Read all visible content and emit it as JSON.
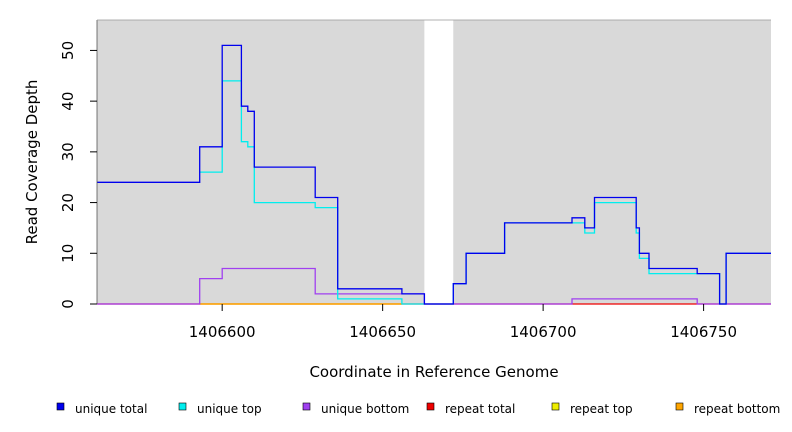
{
  "chart_data": {
    "type": "line",
    "title": "",
    "xlabel": "Coordinate in Reference Genome",
    "ylabel": "Read Coverage Depth",
    "xlim": [
      1406561,
      1406771
    ],
    "ylim": [
      0,
      56
    ],
    "x_ticks": [
      1406600,
      1406650,
      1406700,
      1406750
    ],
    "y_ticks": [
      0,
      10,
      20,
      30,
      40,
      50
    ],
    "background": "#d9d9d9",
    "gap": [
      1406663,
      1406672
    ],
    "legend_position": "bottom",
    "series": [
      {
        "name": "unique total",
        "color": "#0000ee",
        "points": [
          [
            1406561,
            24
          ],
          [
            1406593,
            24
          ],
          [
            1406593,
            31
          ],
          [
            1406600,
            31
          ],
          [
            1406600,
            51
          ],
          [
            1406606,
            51
          ],
          [
            1406606,
            39
          ],
          [
            1406608,
            39
          ],
          [
            1406608,
            38
          ],
          [
            1406610,
            38
          ],
          [
            1406610,
            27
          ],
          [
            1406629,
            27
          ],
          [
            1406629,
            21
          ],
          [
            1406636,
            21
          ],
          [
            1406636,
            3
          ],
          [
            1406656,
            3
          ],
          [
            1406656,
            2
          ],
          [
            1406663,
            2
          ],
          [
            1406663,
            0
          ],
          [
            1406672,
            0
          ],
          [
            1406672,
            4
          ],
          [
            1406676,
            4
          ],
          [
            1406676,
            10
          ],
          [
            1406688,
            10
          ],
          [
            1406688,
            16
          ],
          [
            1406709,
            16
          ],
          [
            1406709,
            17
          ],
          [
            1406713,
            17
          ],
          [
            1406713,
            15
          ],
          [
            1406716,
            15
          ],
          [
            1406716,
            21
          ],
          [
            1406729,
            21
          ],
          [
            1406729,
            15
          ],
          [
            1406730,
            15
          ],
          [
            1406730,
            10
          ],
          [
            1406733,
            10
          ],
          [
            1406733,
            7
          ],
          [
            1406748,
            7
          ],
          [
            1406748,
            6
          ],
          [
            1406755,
            6
          ],
          [
            1406755,
            0
          ],
          [
            1406757,
            0
          ],
          [
            1406757,
            10
          ],
          [
            1406771,
            10
          ]
        ]
      },
      {
        "name": "unique top",
        "color": "#00eeee",
        "points": [
          [
            1406593,
            26
          ],
          [
            1406600,
            26
          ],
          [
            1406600,
            44
          ],
          [
            1406606,
            44
          ],
          [
            1406606,
            32
          ],
          [
            1406608,
            32
          ],
          [
            1406608,
            31
          ],
          [
            1406610,
            31
          ],
          [
            1406610,
            20
          ],
          [
            1406629,
            20
          ],
          [
            1406629,
            19
          ],
          [
            1406636,
            19
          ],
          [
            1406636,
            1
          ],
          [
            1406656,
            1
          ],
          [
            1406656,
            0
          ],
          [
            1406663,
            0
          ],
          [
            1406672,
            0
          ],
          [
            1406672,
            4
          ],
          [
            1406676,
            4
          ],
          [
            1406676,
            10
          ],
          [
            1406688,
            10
          ],
          [
            1406688,
            16
          ],
          [
            1406709,
            16
          ],
          [
            1406709,
            16
          ],
          [
            1406713,
            16
          ],
          [
            1406713,
            14
          ],
          [
            1406716,
            14
          ],
          [
            1406716,
            20
          ],
          [
            1406729,
            20
          ],
          [
            1406729,
            14
          ],
          [
            1406730,
            14
          ],
          [
            1406730,
            9
          ],
          [
            1406733,
            9
          ],
          [
            1406733,
            6
          ],
          [
            1406748,
            6
          ],
          [
            1406748,
            6
          ],
          [
            1406755,
            6
          ],
          [
            1406755,
            0
          ],
          [
            1406757,
            0
          ],
          [
            1406757,
            10
          ],
          [
            1406771,
            10
          ]
        ]
      },
      {
        "name": "unique bottom",
        "color": "#a040f0",
        "points": [
          [
            1406561,
            0
          ],
          [
            1406593,
            0
          ],
          [
            1406593,
            5
          ],
          [
            1406600,
            5
          ],
          [
            1406600,
            7
          ],
          [
            1406629,
            7
          ],
          [
            1406629,
            2
          ],
          [
            1406656,
            2
          ],
          [
            1406656,
            2
          ],
          [
            1406663,
            2
          ],
          [
            1406663,
            0
          ],
          [
            1406709,
            0
          ],
          [
            1406709,
            1
          ],
          [
            1406748,
            1
          ],
          [
            1406748,
            0
          ],
          [
            1406771,
            0
          ]
        ]
      },
      {
        "name": "repeat total",
        "color": "#ee0000",
        "points": [
          [
            1406561,
            0
          ],
          [
            1406663,
            0
          ],
          [
            1406672,
            0
          ],
          [
            1406771,
            0
          ]
        ]
      },
      {
        "name": "repeat top",
        "color": "#eeee00",
        "points": [
          [
            1406593,
            0
          ],
          [
            1406656,
            0
          ]
        ]
      },
      {
        "name": "repeat bottom",
        "color": "#ffa500",
        "points": [
          [
            1406593,
            0
          ],
          [
            1406656,
            0
          ]
        ]
      }
    ]
  }
}
